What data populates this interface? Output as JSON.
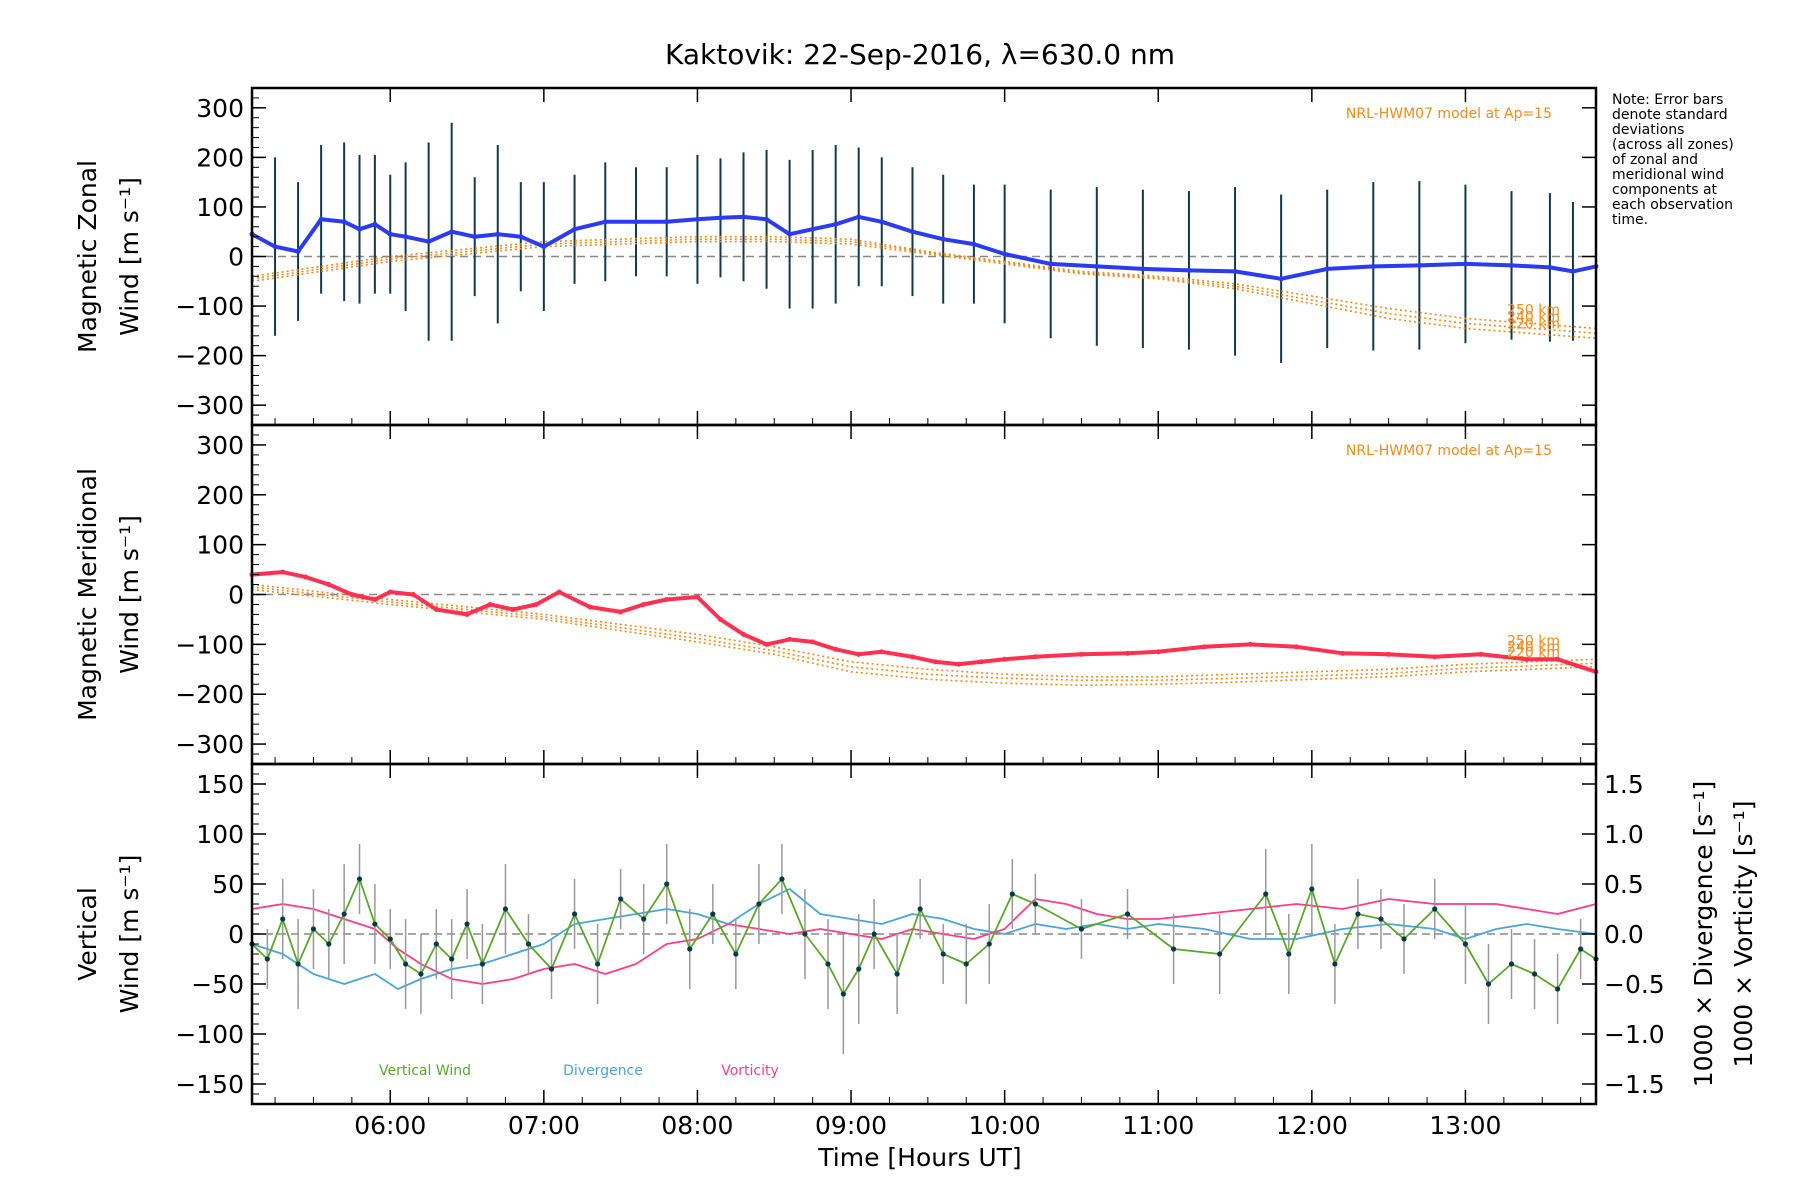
{
  "chart_data": {
    "type": "line",
    "title": "Kaktovik: 22-Sep-2016, λ=630.0 nm",
    "xlabel": "Time [Hours UT]",
    "xlim": [
      5.1,
      13.85
    ],
    "x_tick_labels": [
      "06:00",
      "07:00",
      "08:00",
      "09:00",
      "10:00",
      "11:00",
      "12:00",
      "13:00"
    ],
    "x_ticks": [
      6,
      7,
      8,
      9,
      10,
      11,
      12,
      13
    ],
    "note": [
      "Note: Error bars",
      "denote standard",
      "deviations",
      "(across all zones)",
      "of zonal and",
      "meridional wind",
      "components at",
      "each observation",
      "time."
    ],
    "legend_bottom": [
      "Vertical Wind",
      "Divergence",
      "Vorticity"
    ],
    "colors": {
      "zonal": "#2b3bf0",
      "meridional": "#ff3050",
      "vertical": "#5aa82a",
      "divergence": "#4aa6d8",
      "vorticity": "#ff3d86",
      "model": "#f08a1c",
      "errorbar": "#123a4a",
      "zero": "#888888"
    },
    "panels": [
      {
        "name": "zonal",
        "ylabel": [
          "Magnetic Zonal",
          "Wind [m s⁻¹]"
        ],
        "ylim": [
          -340,
          340
        ],
        "y_ticks": [
          300,
          200,
          100,
          0,
          -100,
          -200,
          -300
        ],
        "y_tick_labels": [
          "300",
          "200",
          "100",
          "0",
          "−100",
          "−200",
          "−300"
        ],
        "model_label": "NRL-HWM07 model at Ap=15",
        "model_alt_labels": [
          "250 km",
          "240 km",
          "220 km"
        ],
        "series": {
          "x": [
            5.1,
            5.25,
            5.4,
            5.55,
            5.7,
            5.8,
            5.9,
            6.0,
            6.1,
            6.25,
            6.4,
            6.55,
            6.7,
            6.85,
            7.0,
            7.2,
            7.4,
            7.6,
            7.8,
            8.0,
            8.15,
            8.3,
            8.45,
            8.6,
            8.75,
            8.9,
            9.05,
            9.2,
            9.4,
            9.6,
            9.8,
            10.0,
            10.3,
            10.6,
            10.9,
            11.2,
            11.5,
            11.8,
            12.1,
            12.4,
            12.7,
            13.0,
            13.3,
            13.55,
            13.7,
            13.85
          ],
          "y": [
            45,
            20,
            10,
            75,
            70,
            55,
            65,
            45,
            40,
            30,
            50,
            40,
            45,
            40,
            20,
            55,
            70,
            70,
            70,
            75,
            78,
            80,
            75,
            45,
            55,
            65,
            80,
            70,
            50,
            35,
            25,
            5,
            -15,
            -20,
            -25,
            -28,
            -30,
            -45,
            -25,
            -20,
            -18,
            -15,
            -18,
            -22,
            -30,
            -20
          ],
          "err": [
            110,
            180,
            140,
            150,
            160,
            150,
            140,
            120,
            150,
            200,
            220,
            120,
            180,
            110,
            130,
            110,
            120,
            110,
            110,
            130,
            120,
            130,
            140,
            150,
            160,
            160,
            140,
            130,
            130,
            130,
            120,
            140,
            150,
            160,
            160,
            160,
            170,
            170,
            160,
            170,
            170,
            160,
            150,
            150,
            140,
            130
          ]
        },
        "models": [
          {
            "alt": "250 km",
            "x": [
              5.1,
              6.0,
              7.0,
              8.0,
              8.5,
              9.0,
              9.5,
              10.0,
              10.5,
              11.0,
              11.5,
              12.0,
              12.5,
              13.0,
              13.85
            ],
            "y": [
              -40,
              0,
              30,
              40,
              40,
              35,
              10,
              -10,
              -30,
              -40,
              -55,
              -80,
              -105,
              -125,
              -145
            ]
          },
          {
            "alt": "240 km",
            "x": [
              5.1,
              6.0,
              7.0,
              8.0,
              8.5,
              9.0,
              9.5,
              10.0,
              10.5,
              11.0,
              11.5,
              12.0,
              12.5,
              13.0,
              13.85
            ],
            "y": [
              -45,
              -5,
              25,
              35,
              35,
              30,
              8,
              -12,
              -33,
              -43,
              -60,
              -88,
              -115,
              -135,
              -155
            ]
          },
          {
            "alt": "220 km",
            "x": [
              5.1,
              6.0,
              7.0,
              8.0,
              8.5,
              9.0,
              9.5,
              10.0,
              10.5,
              11.0,
              11.5,
              12.0,
              12.5,
              13.0,
              13.85
            ],
            "y": [
              -50,
              -10,
              20,
              30,
              30,
              25,
              5,
              -15,
              -35,
              -45,
              -65,
              -95,
              -125,
              -145,
              -165
            ]
          }
        ]
      },
      {
        "name": "meridional",
        "ylabel": [
          "Magnetic Meridional",
          "Wind [m s⁻¹]"
        ],
        "ylim": [
          -340,
          340
        ],
        "y_ticks": [
          300,
          200,
          100,
          0,
          -100,
          -200,
          -300
        ],
        "y_tick_labels": [
          "300",
          "200",
          "100",
          "0",
          "−100",
          "−200",
          "−300"
        ],
        "model_label": "NRL-HWM07 model at Ap=15",
        "model_alt_labels": [
          "250 km",
          "240 km",
          "220 km"
        ],
        "series": {
          "x": [
            5.1,
            5.3,
            5.45,
            5.6,
            5.75,
            5.9,
            6.0,
            6.15,
            6.3,
            6.5,
            6.65,
            6.8,
            6.95,
            7.1,
            7.3,
            7.5,
            7.65,
            7.8,
            8.0,
            8.15,
            8.3,
            8.45,
            8.6,
            8.75,
            8.9,
            9.05,
            9.2,
            9.4,
            9.55,
            9.7,
            9.85,
            10.0,
            10.2,
            10.5,
            10.8,
            11.0,
            11.3,
            11.6,
            11.9,
            12.2,
            12.5,
            12.8,
            13.1,
            13.4,
            13.6,
            13.85
          ],
          "y": [
            40,
            45,
            35,
            20,
            0,
            -10,
            5,
            0,
            -30,
            -40,
            -20,
            -30,
            -20,
            5,
            -25,
            -35,
            -20,
            -10,
            -5,
            -50,
            -80,
            -100,
            -90,
            -95,
            -110,
            -120,
            -115,
            -125,
            -135,
            -140,
            -135,
            -130,
            -125,
            -120,
            -118,
            -115,
            -105,
            -100,
            -105,
            -118,
            -120,
            -125,
            -120,
            -130,
            -130,
            -155
          ]
        },
        "models": [
          {
            "alt": "250 km",
            "x": [
              5.1,
              6.0,
              7.0,
              8.0,
              8.5,
              9.0,
              9.5,
              10.0,
              10.5,
              11.0,
              11.5,
              12.0,
              12.5,
              13.0,
              13.85
            ],
            "y": [
              20,
              -10,
              -40,
              -80,
              -105,
              -135,
              -150,
              -160,
              -165,
              -165,
              -160,
              -155,
              -150,
              -140,
              -130
            ]
          },
          {
            "alt": "240 km",
            "x": [
              5.1,
              6.0,
              7.0,
              8.0,
              8.5,
              9.0,
              9.5,
              10.0,
              10.5,
              11.0,
              11.5,
              12.0,
              12.5,
              13.0,
              13.85
            ],
            "y": [
              15,
              -15,
              -45,
              -88,
              -113,
              -145,
              -160,
              -168,
              -172,
              -172,
              -168,
              -163,
              -158,
              -148,
              -138
            ]
          },
          {
            "alt": "220 km",
            "x": [
              5.1,
              6.0,
              7.0,
              8.0,
              8.5,
              9.0,
              9.5,
              10.0,
              10.5,
              11.0,
              11.5,
              12.0,
              12.5,
              13.0,
              13.85
            ],
            "y": [
              10,
              -20,
              -50,
              -95,
              -120,
              -155,
              -170,
              -178,
              -182,
              -180,
              -176,
              -170,
              -165,
              -155,
              -145
            ]
          }
        ]
      },
      {
        "name": "vertical",
        "ylabel": [
          "Vertical",
          "Wind [m s⁻¹]"
        ],
        "ylim": [
          -170,
          170
        ],
        "y_ticks": [
          150,
          100,
          50,
          0,
          -50,
          -100,
          -150
        ],
        "y_tick_labels": [
          "150",
          "100",
          "50",
          "0",
          "−50",
          "−100",
          "−150"
        ],
        "y2label": [
          "1000 × Divergence [s⁻¹]",
          "1000 × Vorticity [s⁻¹]"
        ],
        "y2lim": [
          -1.7,
          1.7
        ],
        "y2_ticks": [
          1.5,
          1.0,
          0.5,
          0.0,
          -0.5,
          -1.0,
          -1.5
        ],
        "y2_tick_labels": [
          "1.5",
          "1.0",
          "0.5",
          "0.0",
          "−0.5",
          "−1.0",
          "−1.5"
        ],
        "vertical": {
          "x": [
            5.1,
            5.2,
            5.3,
            5.4,
            5.5,
            5.6,
            5.7,
            5.8,
            5.9,
            6.0,
            6.1,
            6.2,
            6.3,
            6.4,
            6.5,
            6.6,
            6.75,
            6.9,
            7.05,
            7.2,
            7.35,
            7.5,
            7.65,
            7.8,
            7.95,
            8.1,
            8.25,
            8.4,
            8.55,
            8.7,
            8.85,
            8.95,
            9.05,
            9.15,
            9.3,
            9.45,
            9.6,
            9.75,
            9.9,
            10.05,
            10.2,
            10.5,
            10.8,
            11.1,
            11.4,
            11.7,
            11.85,
            12.0,
            12.15,
            12.3,
            12.45,
            12.6,
            12.8,
            13.0,
            13.15,
            13.3,
            13.45,
            13.6,
            13.75,
            13.85
          ],
          "y": [
            -10,
            -25,
            15,
            -30,
            5,
            -10,
            20,
            55,
            10,
            -5,
            -30,
            -40,
            -10,
            -25,
            10,
            -30,
            25,
            -10,
            -35,
            20,
            -30,
            35,
            15,
            50,
            -15,
            20,
            -20,
            30,
            55,
            0,
            -30,
            -60,
            -35,
            0,
            -40,
            25,
            -20,
            -30,
            -10,
            40,
            30,
            5,
            20,
            -15,
            -20,
            40,
            -20,
            45,
            -30,
            20,
            15,
            -5,
            25,
            -10,
            -50,
            -30,
            -40,
            -55,
            -15,
            -25
          ],
          "err": [
            25,
            30,
            40,
            45,
            40,
            35,
            50,
            35,
            40,
            30,
            45,
            40,
            35,
            40,
            35,
            40,
            45,
            30,
            30,
            35,
            40,
            30,
            35,
            40,
            40,
            30,
            35,
            40,
            35,
            45,
            45,
            60,
            55,
            35,
            40,
            30,
            30,
            40,
            40,
            35,
            30,
            30,
            25,
            35,
            40,
            45,
            40,
            45,
            40,
            35,
            30,
            35,
            30,
            40,
            40,
            35,
            35,
            35,
            30,
            30
          ]
        },
        "divergence": {
          "x": [
            5.1,
            5.3,
            5.5,
            5.7,
            5.9,
            6.05,
            6.2,
            6.4,
            6.6,
            6.8,
            7.0,
            7.2,
            7.4,
            7.6,
            7.8,
            8.0,
            8.2,
            8.4,
            8.6,
            8.8,
            9.0,
            9.2,
            9.4,
            9.6,
            9.8,
            10.0,
            10.2,
            10.4,
            10.6,
            10.8,
            11.0,
            11.3,
            11.6,
            11.9,
            12.2,
            12.5,
            12.8,
            13.0,
            13.2,
            13.4,
            13.6,
            13.85
          ],
          "y": [
            -0.1,
            -0.2,
            -0.4,
            -0.5,
            -0.4,
            -0.55,
            -0.45,
            -0.35,
            -0.3,
            -0.2,
            -0.1,
            0.1,
            0.15,
            0.2,
            0.25,
            0.2,
            0.1,
            0.3,
            0.45,
            0.2,
            0.15,
            0.1,
            0.2,
            0.15,
            0.05,
            0.0,
            0.1,
            0.05,
            0.1,
            0.05,
            0.1,
            0.05,
            -0.05,
            -0.05,
            0.05,
            0.1,
            0.05,
            -0.05,
            0.05,
            0.1,
            0.05,
            0.0
          ]
        },
        "vorticity": {
          "x": [
            5.1,
            5.3,
            5.5,
            5.7,
            5.9,
            6.05,
            6.2,
            6.4,
            6.6,
            6.8,
            7.0,
            7.2,
            7.4,
            7.6,
            7.8,
            8.0,
            8.2,
            8.4,
            8.6,
            8.8,
            9.0,
            9.2,
            9.4,
            9.6,
            9.8,
            10.0,
            10.2,
            10.4,
            10.6,
            10.8,
            11.0,
            11.3,
            11.6,
            11.9,
            12.2,
            12.5,
            12.8,
            13.0,
            13.2,
            13.4,
            13.6,
            13.85
          ],
          "y": [
            0.25,
            0.3,
            0.25,
            0.15,
            0.05,
            -0.15,
            -0.3,
            -0.45,
            -0.5,
            -0.45,
            -0.35,
            -0.3,
            -0.4,
            -0.3,
            -0.1,
            -0.05,
            0.1,
            0.05,
            0.0,
            0.05,
            0.0,
            -0.05,
            0.05,
            0.0,
            -0.05,
            0.05,
            0.35,
            0.3,
            0.2,
            0.15,
            0.15,
            0.2,
            0.25,
            0.3,
            0.25,
            0.35,
            0.3,
            0.3,
            0.3,
            0.25,
            0.2,
            0.3
          ]
        }
      }
    ]
  }
}
